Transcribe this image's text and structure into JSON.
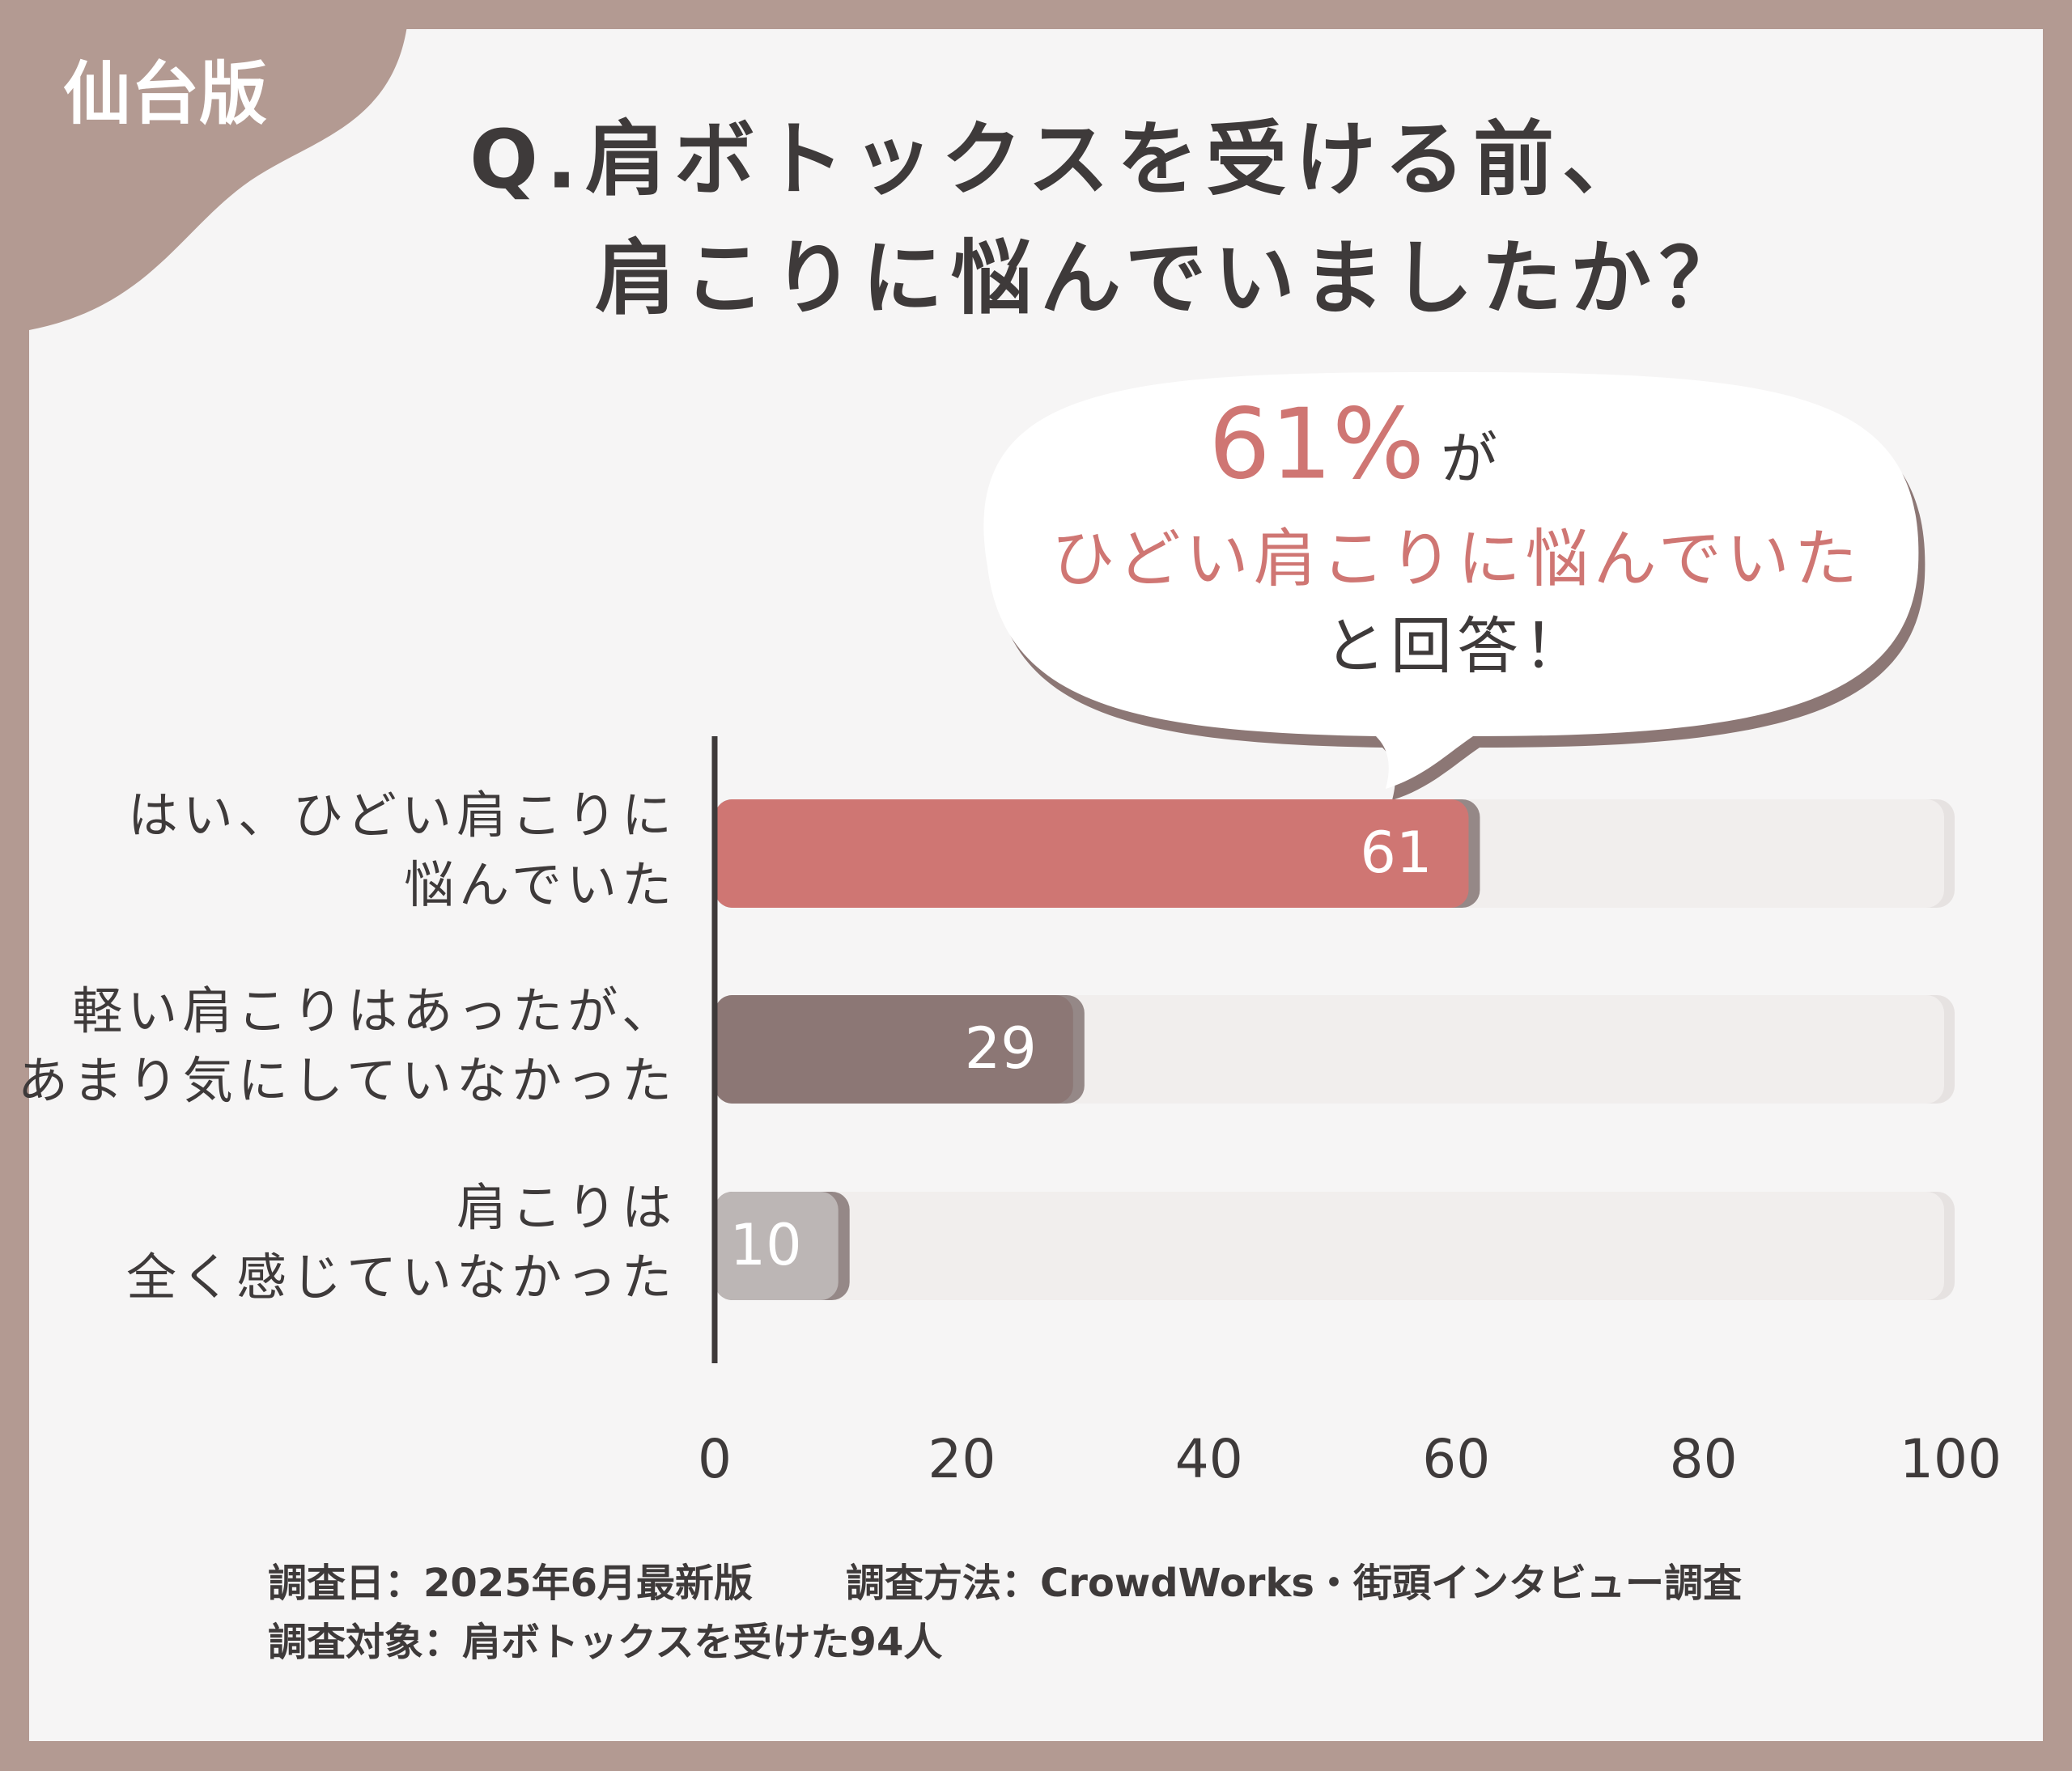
{
  "badge": "仙台版",
  "chart_data": {
    "type": "hbar",
    "title_lines": [
      "Q.肩ボトックスを受ける前、",
      "肩こりに悩んでいましたか？"
    ],
    "callout": {
      "highlight": "61%",
      "highlight_suffix": "が",
      "line2": "ひどい肩こりに悩んでいた",
      "line3": "と回答！"
    },
    "categories": [
      [
        "はい、ひどい肩こりに",
        "悩んでいた"
      ],
      [
        "軽い肩こりはあったが、",
        "あまり気にしていなかった"
      ],
      [
        "肩こりは",
        "全く感じていなかった"
      ]
    ],
    "values": [
      61,
      29,
      10
    ],
    "colors": [
      "#cf7673",
      "#8c7775",
      "#bcb6b5"
    ],
    "xlim": [
      0,
      100
    ],
    "xticks": [
      0,
      20,
      40,
      60,
      80,
      100
    ]
  },
  "footer": {
    "date": "調査日：2025年6月最新版",
    "method": "調査方法：CrowdWorks・街頭インタビュー調査",
    "target": "調査対象：肩ボトックスを受けた94人"
  }
}
